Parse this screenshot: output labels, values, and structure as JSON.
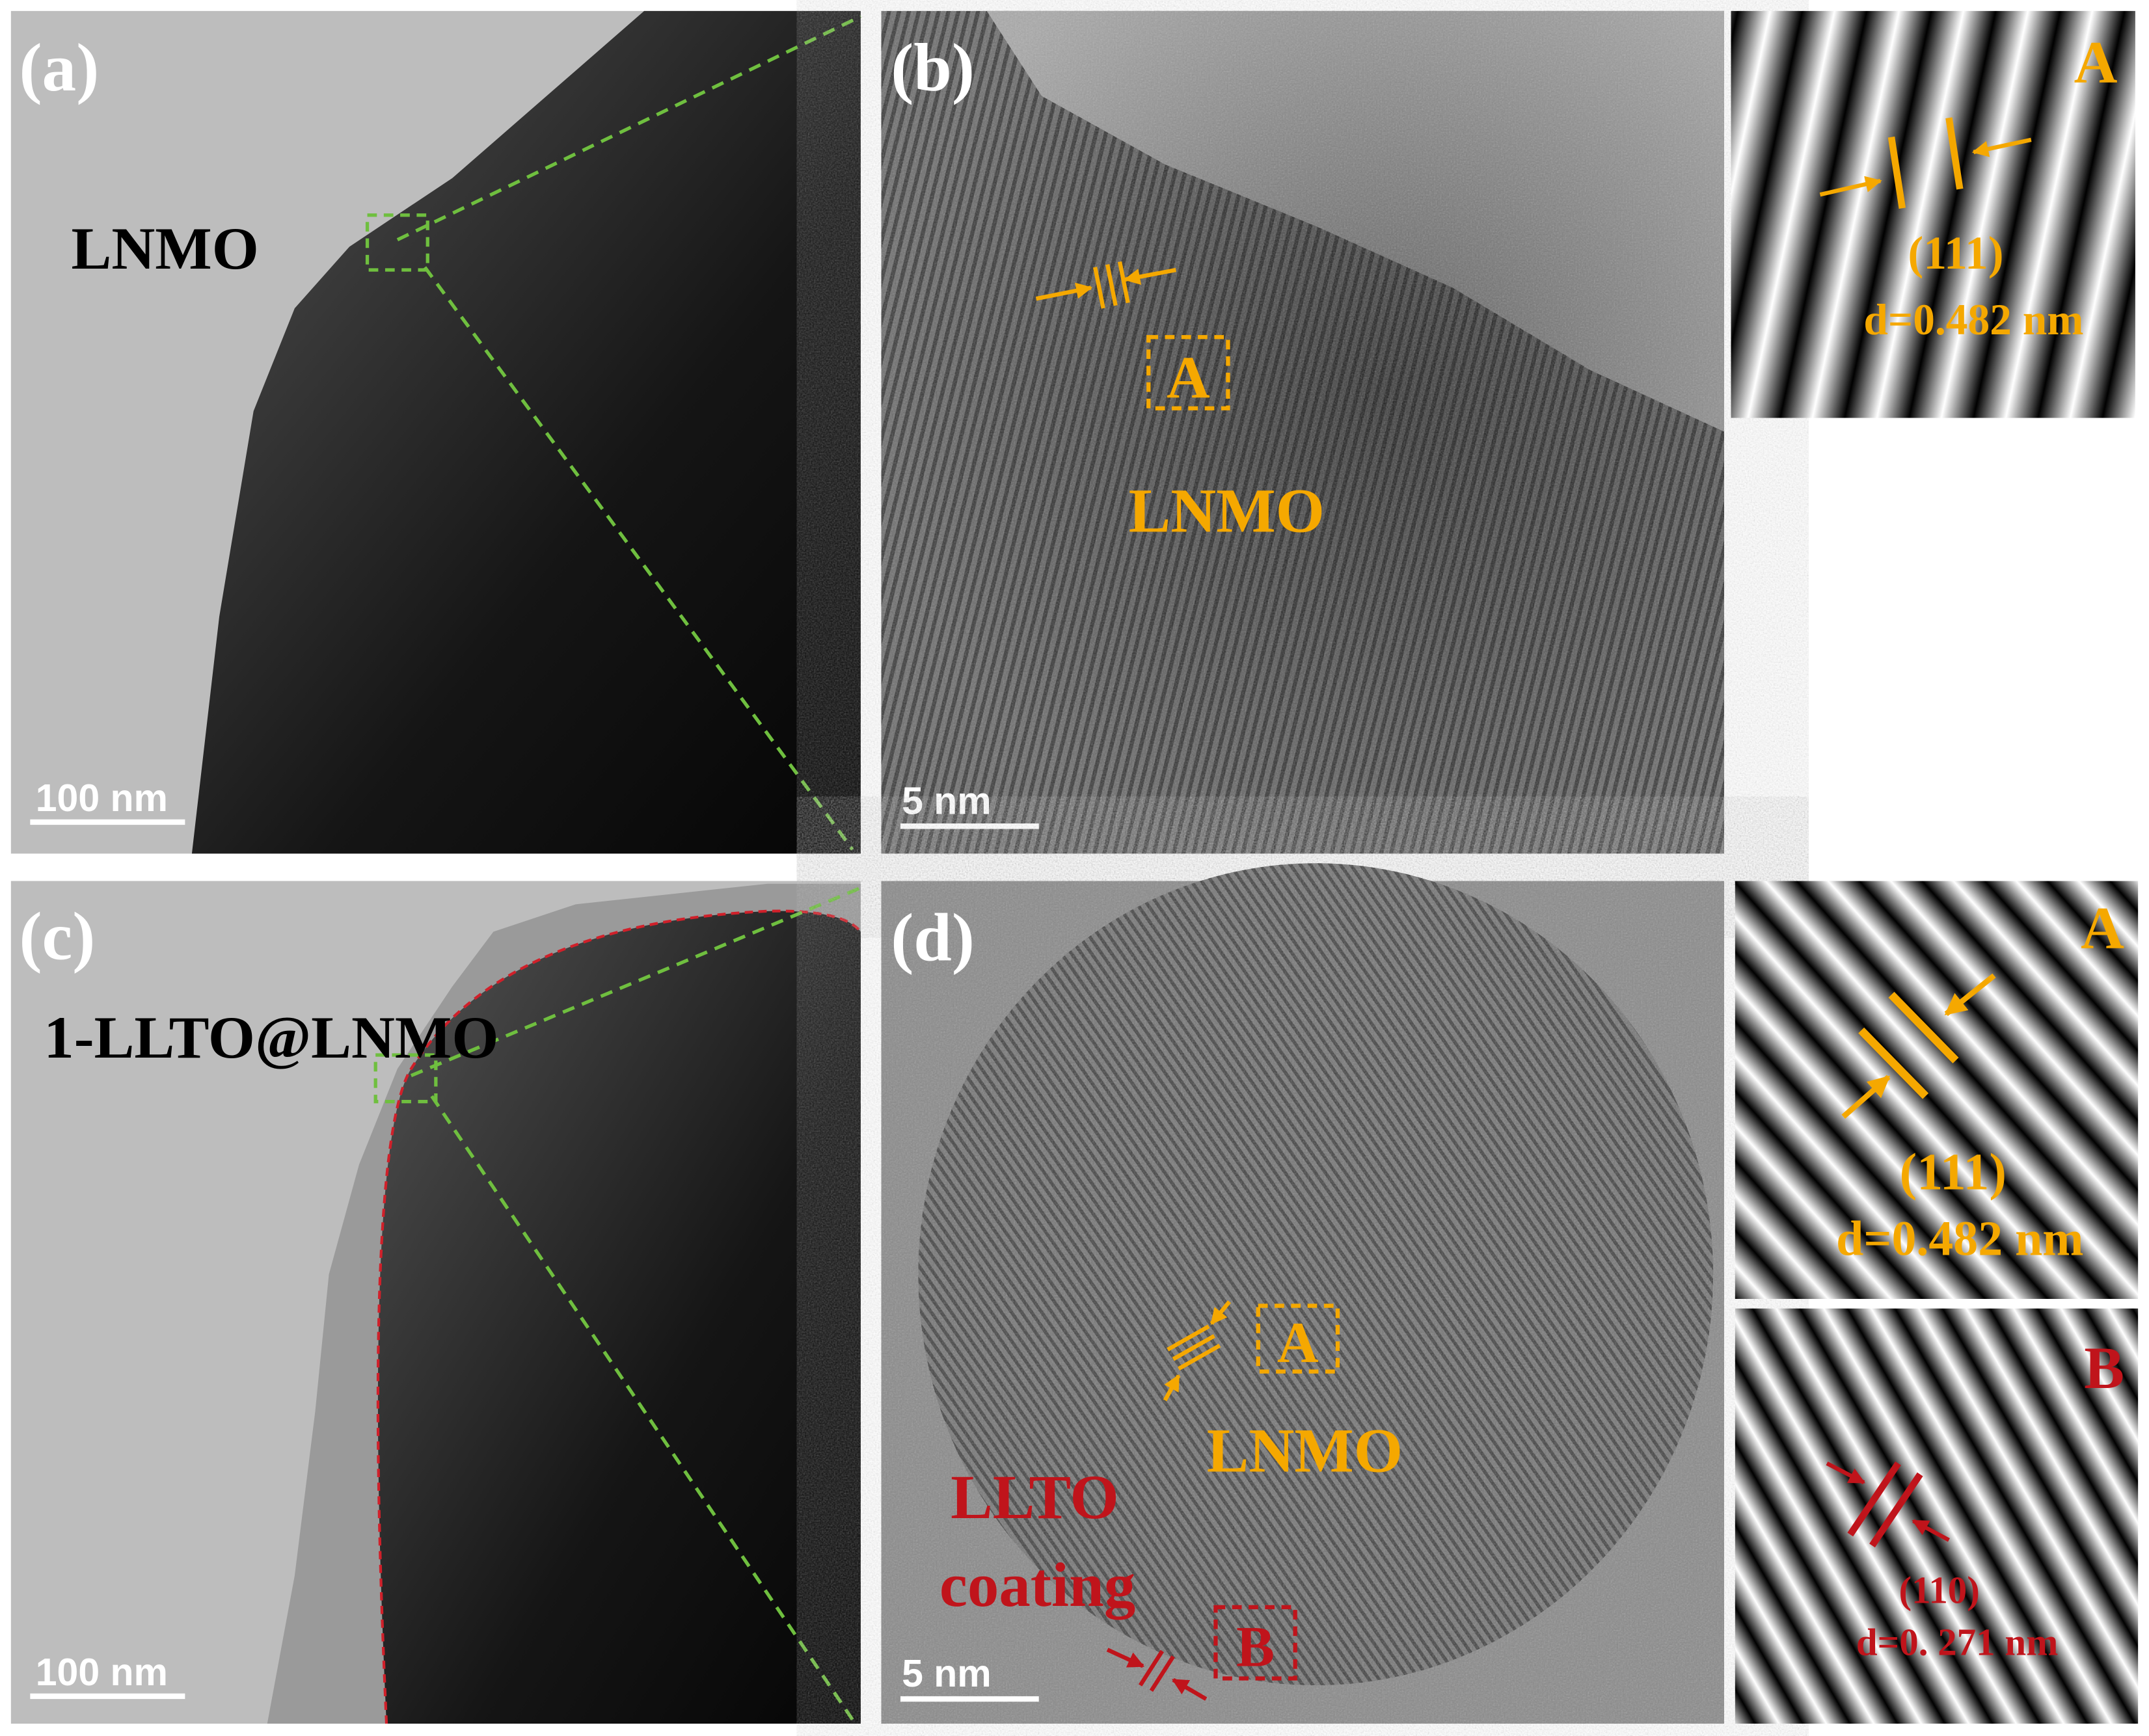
{
  "panels": [
    {
      "label": "(a)",
      "sample": "LNMO",
      "scale_bar": "100 nm"
    },
    {
      "label": "(b)",
      "region": "A",
      "phase": "LNMO",
      "scale_bar": "5 nm",
      "insets": [
        {
          "region": "A",
          "plane": "(111)",
          "spacing": "d=0.482 nm"
        }
      ]
    },
    {
      "label": "(c)",
      "sample": "1-LLTO@LNMO",
      "scale_bar": "100 nm"
    },
    {
      "label": "(d)",
      "region": "A",
      "phase": "LNMO",
      "coating": [
        "LLTO",
        "coating"
      ],
      "region_b": "B",
      "scale_bar": "5 nm",
      "insets": [
        {
          "region": "A",
          "plane": "(111)",
          "spacing": "d=0.482 nm"
        },
        {
          "region": "B",
          "plane": "(110)",
          "spacing": "d=0. 271 nm"
        }
      ]
    }
  ]
}
